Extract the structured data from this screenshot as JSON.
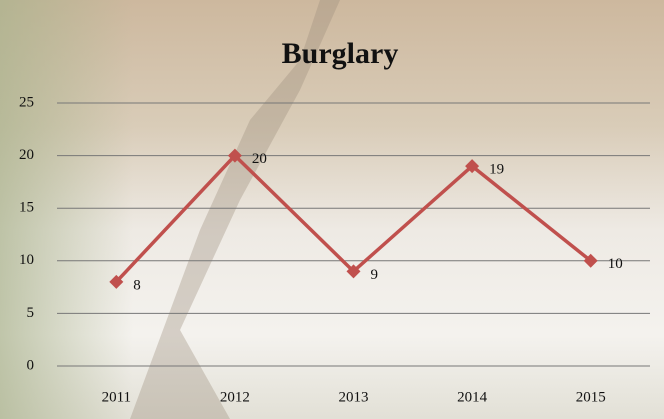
{
  "chart_data": {
    "type": "line",
    "title": "Burglary",
    "categories": [
      "2011",
      "2012",
      "2013",
      "2014",
      "2015"
    ],
    "series": [
      {
        "name": "Burglary",
        "color": "#c0504d",
        "values": [
          8,
          20,
          9,
          19,
          10
        ]
      }
    ],
    "ylim": [
      0,
      25
    ],
    "yticks": [
      0,
      5,
      10,
      15,
      20,
      25
    ],
    "grid": true
  }
}
